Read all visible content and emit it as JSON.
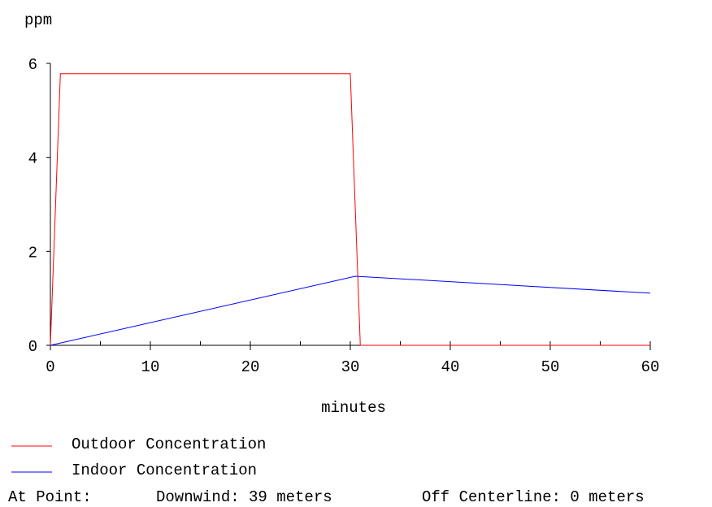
{
  "chart_data": {
    "type": "line",
    "title": "",
    "xlabel": "minutes",
    "ylabel": "ppm",
    "xlim": [
      0,
      60
    ],
    "ylim": [
      0,
      6
    ],
    "x_ticks": [
      0,
      10,
      20,
      30,
      40,
      50,
      60
    ],
    "y_ticks": [
      0,
      2,
      4,
      6
    ],
    "x_minor_step": 5,
    "grid": false,
    "legend_position": "bottom-left",
    "series": [
      {
        "name": "Outdoor Concentration",
        "color": "#ff0000",
        "x": [
          0,
          1,
          30,
          31,
          60
        ],
        "y": [
          0,
          5.78,
          5.78,
          0,
          0
        ]
      },
      {
        "name": "Indoor Concentration",
        "color": "#0000ff",
        "x": [
          0,
          30.5,
          60
        ],
        "y": [
          0,
          1.47,
          1.11
        ]
      }
    ]
  },
  "footer": {
    "label": "At Point:",
    "downwind": "Downwind: 39 meters",
    "off_centerline": "Off Centerline: 0 meters"
  }
}
